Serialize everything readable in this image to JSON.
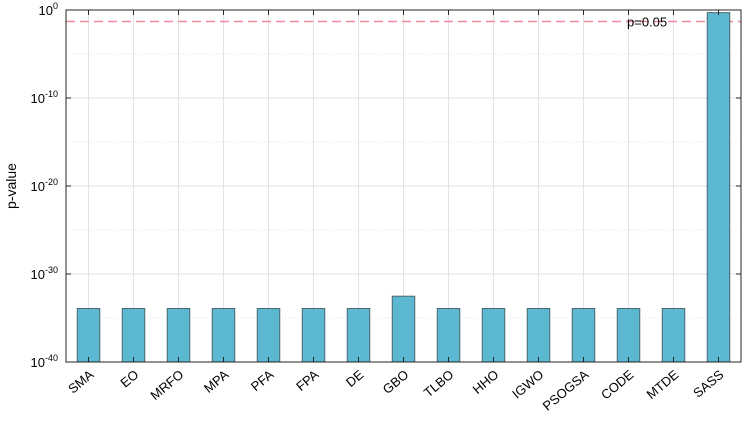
{
  "chart_data": {
    "type": "bar",
    "title": "",
    "xlabel": "",
    "ylabel": "p-value",
    "yscale": "log",
    "ylim_exponents": [
      -40,
      0
    ],
    "y_tick_exponents": [
      0,
      -10,
      -20,
      -30,
      -40
    ],
    "y_tick_base": "10",
    "grid": true,
    "categories": [
      "SMA",
      "EO",
      "MRFO",
      "MPA",
      "PFA",
      "FPA",
      "DE",
      "GBO",
      "TLBO",
      "HHO",
      "IGWO",
      "PSOGSA",
      "CODE",
      "MTDE",
      "SASS"
    ],
    "values": [
      1.2e-34,
      1.2e-34,
      1.2e-34,
      1.2e-34,
      1.2e-34,
      1.2e-34,
      1.2e-34,
      3e-33,
      1.2e-34,
      1.2e-34,
      1.2e-34,
      1.2e-34,
      1.2e-34,
      1.2e-34,
      0.5
    ],
    "threshold": {
      "value": 0.05,
      "label": "p=0.05",
      "color": "#f08a9a",
      "style": "dashed"
    },
    "bar_color": "#5bb8d0",
    "bar_edge_color": "#4a6670"
  }
}
